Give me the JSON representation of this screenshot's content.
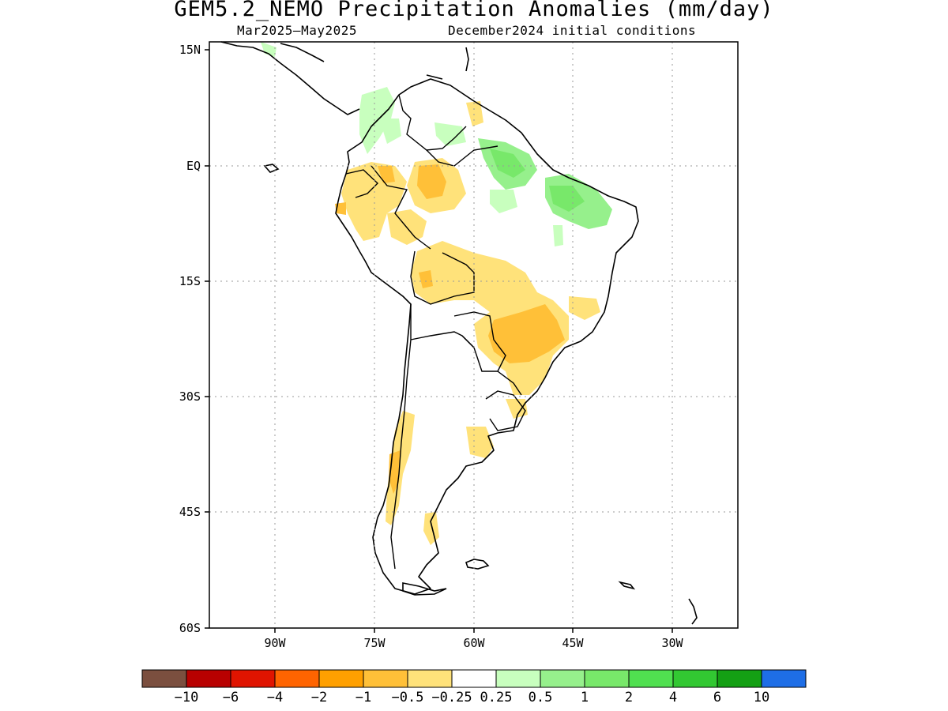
{
  "title": "GEM5.2_NEMO Precipitation Anomalies (mm/day)",
  "subtitle_period": "Mar2025—May2025",
  "subtitle_init": "December2024 initial conditions",
  "map": {
    "lon_range": [
      -100,
      -20
    ],
    "lat_range": [
      -60,
      15
    ],
    "lat_ticks": [
      "15N",
      "EQ",
      "15S",
      "30S",
      "45S",
      "60S"
    ],
    "lon_ticks": [
      "90W",
      "75W",
      "60W",
      "45W",
      "30W"
    ],
    "grid": true,
    "grid_style": "dotted"
  },
  "colorbar": {
    "colors": [
      "#7b4f3f",
      "#b80000",
      "#e01400",
      "#ff6400",
      "#ffa000",
      "#ffc038",
      "#ffe27a",
      "#ffffff",
      "#c8ffbe",
      "#96f08c",
      "#78e86a",
      "#50e050",
      "#32c832",
      "#14a014",
      "#1e6ee6"
    ],
    "labels": [
      "−10",
      "−6",
      "−4",
      "−2",
      "−1",
      "−0.5",
      "−0.25",
      "0.25",
      "0.5",
      "1",
      "2",
      "4",
      "6",
      "10"
    ]
  },
  "anomaly_regions": [
    {
      "name": "central-brazil-dry",
      "color": "#ffe27a"
    },
    {
      "name": "amazon-west-dry",
      "color": "#ffe27a"
    },
    {
      "name": "amazon-core-dry",
      "color": "#ffc038"
    },
    {
      "name": "southeast-brazil-dry",
      "color": "#ffc038"
    },
    {
      "name": "chile-coast-dry",
      "color": "#ffc038"
    },
    {
      "name": "northeast-brazil-wet",
      "color": "#96f08c"
    },
    {
      "name": "amazon-mouth-wet",
      "color": "#78e86a"
    },
    {
      "name": "colombia-wet",
      "color": "#c8ffbe"
    }
  ]
}
